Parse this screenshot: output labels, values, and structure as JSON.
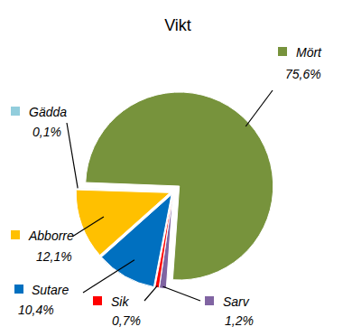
{
  "chart_data": {
    "type": "pie",
    "title": "Vikt",
    "categories": [
      "Mört",
      "Sarv",
      "Sik",
      "Sutare",
      "Abborre",
      "Gädda"
    ],
    "values": [
      75.6,
      1.2,
      0.7,
      10.4,
      12.1,
      0.1
    ],
    "value_labels": [
      "75,6%",
      "1,2%",
      "0,7%",
      "10,4%",
      "12,1%",
      "0,1%"
    ],
    "colors": [
      "#77933c",
      "#8064a2",
      "#ff0000",
      "#0070c0",
      "#ffc000",
      "#92cddc"
    ],
    "data_labels": true
  }
}
